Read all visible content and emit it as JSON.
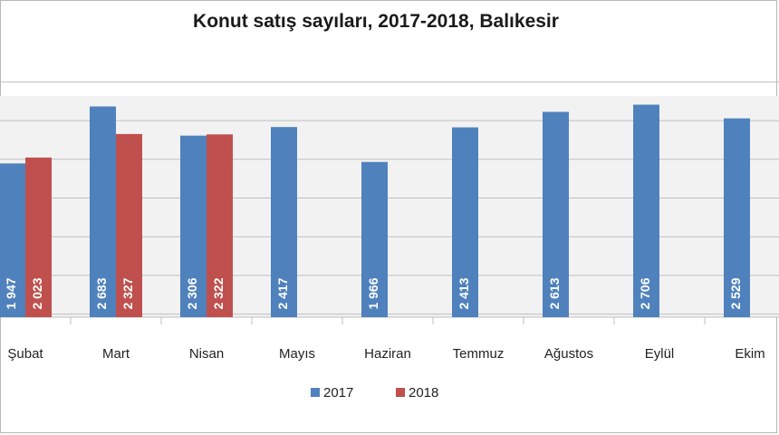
{
  "chart_data": {
    "type": "bar",
    "title": "Konut satış sayıları, 2017-2018, Balıkesir",
    "categories": [
      "Şubat",
      "Mart",
      "Nisan",
      "Mayıs",
      "Haziran",
      "Temmuz",
      "Ağustos",
      "Eylül",
      "Ekim"
    ],
    "series": [
      {
        "name": "2017",
        "color": "#4f81bd",
        "values": [
          1947,
          2683,
          2306,
          2417,
          1966,
          2413,
          2613,
          2706,
          2529
        ],
        "labels": [
          "1 947",
          "2 683",
          "2 306",
          "2 417",
          "1 966",
          "2 413",
          "2 613",
          "2 706",
          "2 529"
        ]
      },
      {
        "name": "2018",
        "color": "#c0504d",
        "values": [
          2023,
          2327,
          2322,
          null,
          null,
          null,
          null,
          null,
          null
        ],
        "labels": [
          "2 023",
          "2 327",
          "2 322",
          "",
          "",
          "",
          "",
          "",
          ""
        ]
      }
    ],
    "ylim": [
      0,
      3000
    ],
    "grid": true,
    "legend": "bottom",
    "plot_background": "#f2f2f2"
  }
}
